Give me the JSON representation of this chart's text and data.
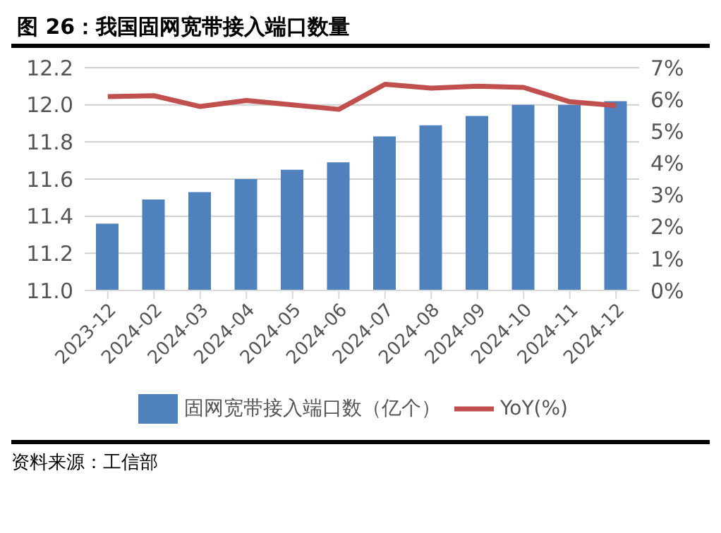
{
  "chart_data": {
    "type": "bar",
    "title": "图 26：我国固网宽带接入端口数量",
    "categories": [
      "2023-12",
      "2024-02",
      "2024-03",
      "2024-04",
      "2024-05",
      "2024-06",
      "2024-07",
      "2024-08",
      "2024-09",
      "2024-10",
      "2024-11",
      "2024-12"
    ],
    "series": [
      {
        "name": "固网宽带接入端口数（亿个）",
        "color": "#4f81bd",
        "values": [
          11.36,
          11.49,
          11.53,
          11.6,
          11.65,
          11.69,
          11.83,
          11.89,
          11.94,
          12.0,
          12.0,
          12.02
        ]
      },
      {
        "name": "YoY(%)",
        "type": "line",
        "axis": "y2",
        "color": "#c0504d",
        "values": [
          6.09,
          6.12,
          5.78,
          5.97,
          5.83,
          5.69,
          6.48,
          6.36,
          6.42,
          6.38,
          5.93,
          5.81
        ]
      }
    ],
    "ylim": [
      11.0,
      12.2
    ],
    "yticks": [
      {
        "value": 11.0,
        "label": "11.0"
      },
      {
        "value": 11.2,
        "label": "11.2"
      },
      {
        "value": 11.4,
        "label": "11.4"
      },
      {
        "value": 11.6,
        "label": "11.6"
      },
      {
        "value": 11.8,
        "label": "11.8"
      },
      {
        "value": 12.0,
        "label": "12.0"
      },
      {
        "value": 12.2,
        "label": "12.2"
      }
    ],
    "y2lim": [
      0,
      7
    ],
    "y2ticks": [
      {
        "value": 0,
        "label": "0%"
      },
      {
        "value": 1,
        "label": "1%"
      },
      {
        "value": 2,
        "label": "2%"
      },
      {
        "value": 3,
        "label": "3%"
      },
      {
        "value": 4,
        "label": "4%"
      },
      {
        "value": 5,
        "label": "5%"
      },
      {
        "value": 6,
        "label": "6%"
      },
      {
        "value": 7,
        "label": "7%"
      }
    ],
    "grid": "y",
    "legend": "bottom",
    "marker": "none",
    "line_style": "solid",
    "annotations": [
      "资料来源：工信部"
    ]
  }
}
